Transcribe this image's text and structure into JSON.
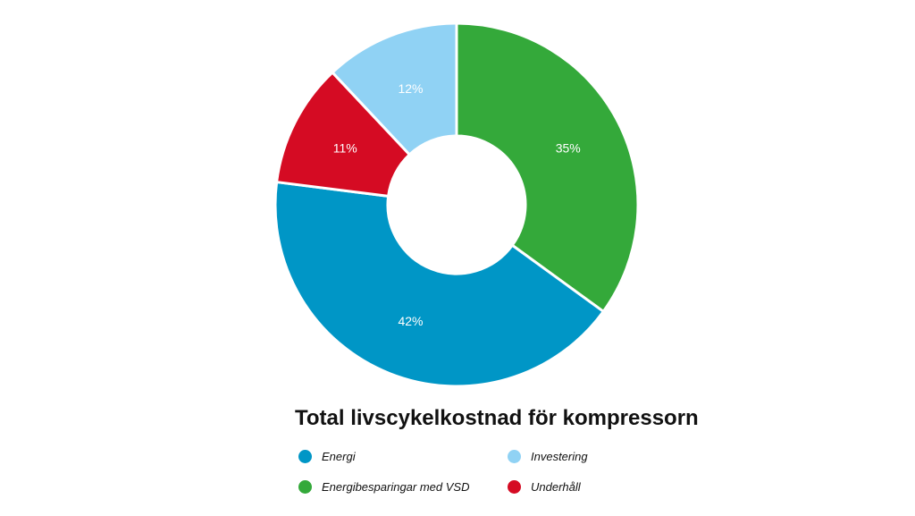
{
  "chart_data": {
    "type": "pie",
    "title": "Total livscykelkostnad för kompressorn",
    "slices": [
      {
        "name": "Energibesparingar med VSD",
        "value": 35,
        "label": "35%",
        "color": "#34a93a"
      },
      {
        "name": "Energi",
        "value": 42,
        "label": "42%",
        "color": "#0096c6"
      },
      {
        "name": "Underhåll",
        "value": 11,
        "label": "11%",
        "color": "#d50b23"
      },
      {
        "name": "Investering",
        "value": 12,
        "label": "12%",
        "color": "#90d2f4"
      }
    ],
    "legend": [
      {
        "name": "Energi",
        "color": "#0096c6"
      },
      {
        "name": "Investering",
        "color": "#90d2f4"
      },
      {
        "name": "Energibesparingar med VSD",
        "color": "#34a93a"
      },
      {
        "name": "Underhåll",
        "color": "#d50b23"
      }
    ],
    "legend_position": "bottom"
  }
}
